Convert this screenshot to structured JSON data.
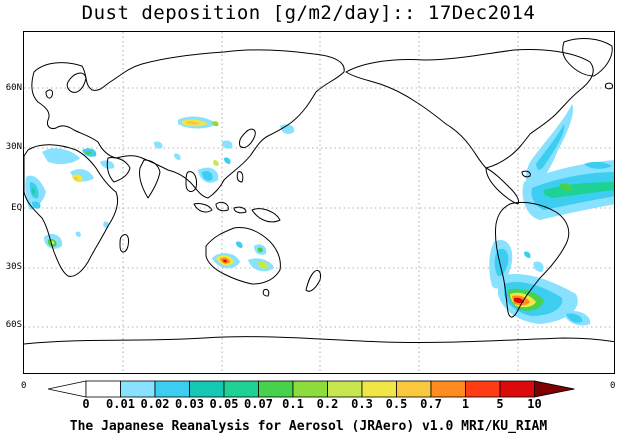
{
  "title": "Dust deposition [g/m2/day]:: 17Dec2014",
  "footer": "The Japanese Reanalysis for Aerosol (JRAero) v1.0 MRI/KU_RIAM",
  "lat_labels": [
    "60N",
    "30N",
    "EQ",
    "30S",
    "60S"
  ],
  "frame_zero_left": "0",
  "frame_zero_right": "0",
  "colorbar": {
    "levels": [
      "0",
      "0.01",
      "0.02",
      "0.03",
      "0.05",
      "0.07",
      "0.1",
      "0.2",
      "0.3",
      "0.5",
      "0.7",
      "1",
      "5",
      "10"
    ],
    "colors": [
      "#ffffff",
      "#87e1ff",
      "#3ccdf0",
      "#14c8b4",
      "#1ed296",
      "#46d24b",
      "#8cdc3c",
      "#c8e650",
      "#f0e646",
      "#fac83c",
      "#ff8c1e",
      "#ff3c14",
      "#dc0a0a",
      "#a00000",
      "#800000"
    ]
  }
}
